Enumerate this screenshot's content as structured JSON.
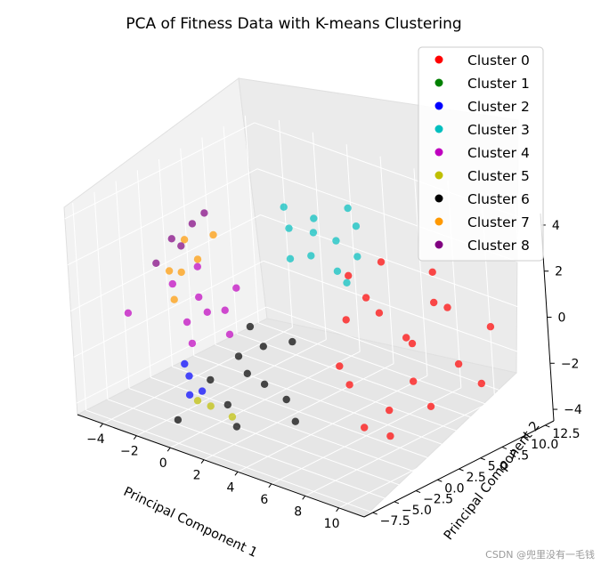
{
  "chart_data": {
    "type": "scatter",
    "projection": "3d",
    "title": "PCA of Fitness Data with K-means Clustering",
    "xlabel": "Principal Component 1",
    "ylabel": "Principal Component 2",
    "zlabel": "",
    "xlim": [
      -5.5,
      11.5
    ],
    "ylim": [
      -8.5,
      13.5
    ],
    "zlim": [
      -4.5,
      4.5
    ],
    "xticks": [
      "−4",
      "−2",
      "0",
      "2",
      "4",
      "6",
      "8",
      "10"
    ],
    "yticks": [
      "−7.5",
      "−5.0",
      "−2.5",
      "0.0",
      "2.5",
      "5.0",
      "7.5",
      "10.0",
      "12.5"
    ],
    "zticks": [
      "−4",
      "−2",
      "0",
      "2",
      "4"
    ],
    "grid": true,
    "legend_position": "upper-right",
    "series": [
      {
        "name": "Cluster 0",
        "color": "#ff0000",
        "points": [
          [
            5.5,
            2.0,
            0.5
          ],
          [
            7.0,
            3.0,
            1.0
          ],
          [
            8.0,
            4.0,
            0.0
          ],
          [
            9.0,
            5.5,
            1.5
          ],
          [
            10.0,
            6.0,
            -1.0
          ],
          [
            6.0,
            1.0,
            -2.0
          ],
          [
            7.5,
            2.5,
            -3.0
          ],
          [
            11.0,
            8.0,
            0.5
          ],
          [
            8.5,
            6.5,
            2.5
          ],
          [
            6.5,
            4.5,
            2.8
          ],
          [
            9.5,
            3.5,
            -2.5
          ],
          [
            10.5,
            7.5,
            -2.0
          ],
          [
            7.0,
            0.5,
            -3.5
          ],
          [
            8.0,
            1.5,
            -3.8
          ],
          [
            5.0,
            3.5,
            2.0
          ],
          [
            6.0,
            0.0,
            -1.0
          ],
          [
            9.0,
            7.0,
            1.0
          ],
          [
            7.8,
            5.0,
            -0.5
          ],
          [
            6.8,
            2.0,
            1.8
          ],
          [
            8.8,
            3.0,
            -1.5
          ]
        ]
      },
      {
        "name": "Cluster 1",
        "color": "#008000",
        "points": []
      },
      {
        "name": "Cluster 2",
        "color": "#0000ff",
        "points": [
          [
            -1.0,
            -4.0,
            -2.5
          ],
          [
            -0.5,
            -5.0,
            -3.0
          ],
          [
            0.0,
            -4.5,
            -2.8
          ],
          [
            -1.5,
            -3.5,
            -2.2
          ]
        ]
      },
      {
        "name": "Cluster 3",
        "color": "#00bfbf",
        "points": [
          [
            0.5,
            5.5,
            2.5
          ],
          [
            1.5,
            6.5,
            3.0
          ],
          [
            2.5,
            7.0,
            2.2
          ],
          [
            3.5,
            7.5,
            3.0
          ],
          [
            1.0,
            4.5,
            1.5
          ],
          [
            2.0,
            5.0,
            1.8
          ],
          [
            3.0,
            6.0,
            1.2
          ],
          [
            4.0,
            6.5,
            2.0
          ],
          [
            0.0,
            6.0,
            3.2
          ],
          [
            2.8,
            8.0,
            3.5
          ],
          [
            1.8,
            5.8,
            2.6
          ],
          [
            3.8,
            5.5,
            1.0
          ]
        ]
      },
      {
        "name": "Cluster 4",
        "color": "#bf00bf",
        "points": [
          [
            -2.0,
            -0.5,
            0.0
          ],
          [
            -1.0,
            0.5,
            -0.5
          ],
          [
            0.0,
            -1.0,
            -1.0
          ],
          [
            -3.0,
            -1.5,
            0.5
          ],
          [
            -1.5,
            -2.5,
            -1.5
          ],
          [
            -0.5,
            1.0,
            0.5
          ],
          [
            -2.5,
            0.5,
            1.0
          ],
          [
            -5.0,
            -3.0,
            -1.0
          ],
          [
            -1.0,
            -1.5,
            -0.2
          ],
          [
            -2.0,
            -2.0,
            -0.8
          ]
        ]
      },
      {
        "name": "Cluster 5",
        "color": "#bfbf00",
        "points": [
          [
            1.0,
            -5.5,
            -3.0
          ],
          [
            2.0,
            -5.0,
            -3.3
          ],
          [
            0.5,
            -6.0,
            -2.8
          ]
        ]
      },
      {
        "name": "Cluster 6",
        "color": "#000000",
        "points": [
          [
            1.0,
            -2.0,
            -1.5
          ],
          [
            2.0,
            -1.0,
            -1.0
          ],
          [
            3.0,
            -3.0,
            -2.0
          ],
          [
            0.0,
            -3.5,
            -2.5
          ],
          [
            1.5,
            -4.5,
            -3.0
          ],
          [
            4.0,
            -2.5,
            -2.5
          ],
          [
            2.5,
            -5.5,
            -3.5
          ],
          [
            -0.5,
            -6.5,
            -3.8
          ],
          [
            3.5,
            -0.5,
            -0.5
          ],
          [
            5.0,
            -3.5,
            -3.0
          ],
          [
            2.0,
            -3.0,
            -1.8
          ],
          [
            1.0,
            -0.5,
            -0.5
          ]
        ]
      },
      {
        "name": "Cluster 7",
        "color": "#ff9900",
        "points": [
          [
            -3.0,
            1.5,
            1.0
          ],
          [
            -3.5,
            0.5,
            0.5
          ],
          [
            -4.0,
            2.0,
            1.5
          ],
          [
            -2.5,
            2.5,
            2.0
          ],
          [
            -3.5,
            -0.5,
            -0.5
          ],
          [
            -4.5,
            1.0,
            0.2
          ]
        ]
      },
      {
        "name": "Cluster 8",
        "color": "#800080",
        "points": [
          [
            -4.5,
            1.5,
            1.5
          ],
          [
            -4.0,
            3.0,
            2.0
          ],
          [
            -5.0,
            0.5,
            0.5
          ],
          [
            -3.5,
            3.5,
            2.5
          ],
          [
            -4.5,
            2.5,
            1.0
          ]
        ]
      }
    ]
  },
  "watermark": "CSDN @兜里没有一毛钱"
}
